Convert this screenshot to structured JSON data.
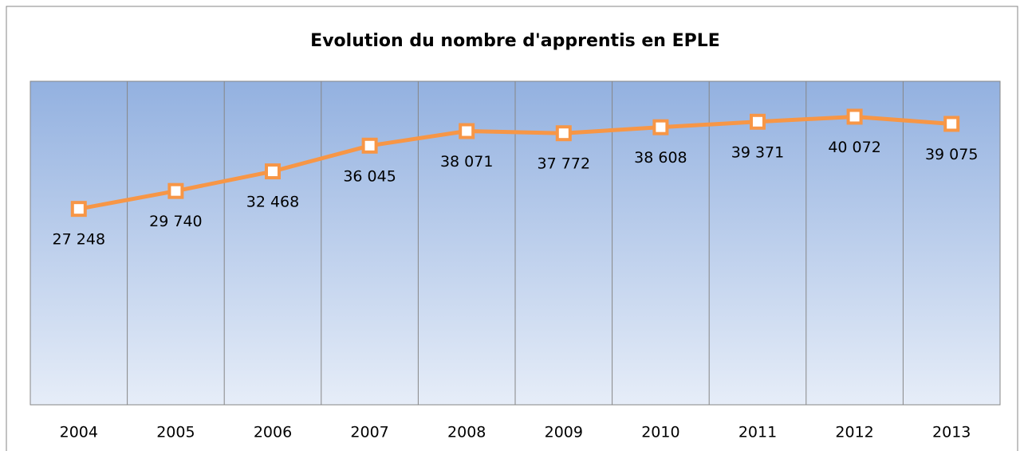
{
  "chart_data": {
    "type": "line",
    "title": "Evolution du nombre d'apprentis en EPLE",
    "categories": [
      "2004",
      "2005",
      "2006",
      "2007",
      "2008",
      "2009",
      "2010",
      "2011",
      "2012",
      "2013"
    ],
    "values": [
      27248,
      29740,
      32468,
      36045,
      38071,
      37772,
      38608,
      39371,
      40072,
      39075
    ],
    "value_labels": [
      "27 248",
      "29 740",
      "32 468",
      "36 045",
      "38 071",
      "37 772",
      "38 608",
      "39 371",
      "40 072",
      "39 075"
    ],
    "color": "#f79646",
    "ylim": [
      0,
      45000
    ]
  }
}
